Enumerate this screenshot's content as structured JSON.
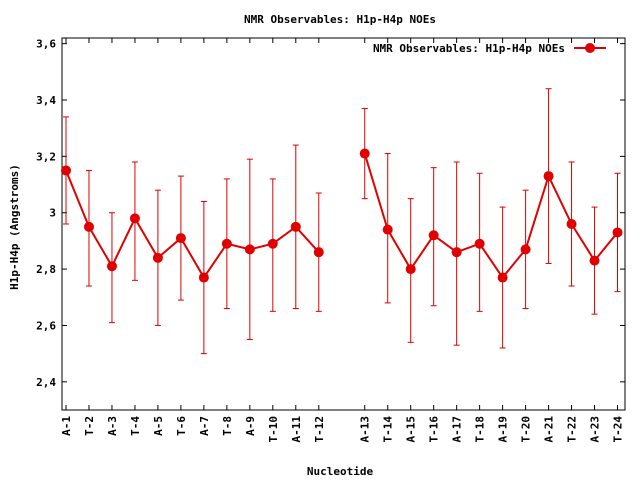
{
  "chart_data": {
    "type": "line",
    "title": "NMR Observables: H1p-H4p NOEs",
    "xlabel": "Nucleotide",
    "ylabel": "H1p-H4p (Angstroms)",
    "ylim": [
      2.3,
      3.62
    ],
    "yticks": [
      "2,4",
      "2,6",
      "2,8",
      "3",
      "3,2",
      "3,4",
      "3,6"
    ],
    "ytick_values": [
      2.4,
      2.6,
      2.8,
      3.0,
      3.2,
      3.4,
      3.6
    ],
    "legend_position": "top-right",
    "color": "#e00000",
    "series": [
      {
        "name": "NMR Observables: H1p-H4p NOEs",
        "segments": [
          {
            "categories": [
              "A-1",
              "T-2",
              "A-3",
              "T-4",
              "A-5",
              "T-6",
              "A-7",
              "T-8",
              "A-9",
              "T-10",
              "A-11",
              "T-12"
            ],
            "values": [
              3.15,
              2.95,
              2.81,
              2.98,
              2.84,
              2.91,
              2.77,
              2.89,
              2.87,
              2.89,
              2.95,
              2.86
            ],
            "err_high": [
              3.34,
              3.15,
              3.0,
              3.18,
              3.08,
              3.13,
              3.04,
              3.12,
              3.19,
              3.12,
              3.24,
              3.07
            ],
            "err_low": [
              2.96,
              2.74,
              2.61,
              2.76,
              2.6,
              2.69,
              2.5,
              2.66,
              2.55,
              2.65,
              2.66,
              2.65
            ]
          },
          {
            "categories": [
              "A-13",
              "T-14",
              "A-15",
              "T-16",
              "A-17",
              "T-18",
              "A-19",
              "T-20",
              "A-21",
              "T-22",
              "A-23",
              "T-24"
            ],
            "values": [
              3.21,
              2.94,
              2.8,
              2.92,
              2.86,
              2.89,
              2.77,
              2.87,
              3.13,
              2.96,
              2.83,
              2.93
            ],
            "err_high": [
              3.37,
              3.21,
              3.05,
              3.16,
              3.18,
              3.14,
              3.02,
              3.08,
              3.44,
              3.18,
              3.02,
              3.14
            ],
            "err_low": [
              3.05,
              2.68,
              2.54,
              2.67,
              2.53,
              2.65,
              2.52,
              2.66,
              2.82,
              2.74,
              2.64,
              2.72
            ]
          }
        ]
      }
    ]
  }
}
